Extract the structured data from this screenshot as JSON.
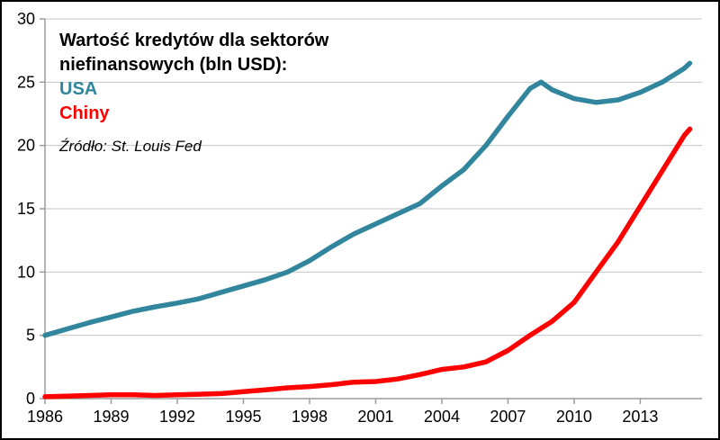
{
  "header": {
    "title_line1": "Wartość kredytów dla sektorów",
    "title_line2": "niefinansowych (bln USD):",
    "legend": [
      {
        "label": "USA"
      },
      {
        "label": "Chiny"
      }
    ],
    "source": "Źródło: St. Louis Fed"
  },
  "chart_data": {
    "type": "line",
    "title": "Wartość kredytów dla sektorów niefinansowych (bln USD):",
    "source": "Źródło: St. Louis Fed",
    "xlabel": "",
    "ylabel": "",
    "xlim": [
      1986,
      2015.8
    ],
    "ylim": [
      0,
      30
    ],
    "xticks": [
      1986,
      1989,
      1992,
      1995,
      1998,
      2001,
      2004,
      2007,
      2010,
      2013
    ],
    "yticks": [
      0,
      5,
      10,
      15,
      20,
      25,
      30
    ],
    "grid": "horizontal-only",
    "gridline_color": "#C6C6C6",
    "axis_color": "#9C9C9C",
    "legend_position": "top-left-inside",
    "series": [
      {
        "name": "USA",
        "color": "#31859C",
        "points": [
          [
            1986,
            5.0
          ],
          [
            1987,
            5.5
          ],
          [
            1988,
            6.0
          ],
          [
            1989,
            6.45
          ],
          [
            1990,
            6.9
          ],
          [
            1991,
            7.25
          ],
          [
            1992,
            7.55
          ],
          [
            1993,
            7.9
          ],
          [
            1994,
            8.4
          ],
          [
            1995,
            8.9
          ],
          [
            1996,
            9.4
          ],
          [
            1997,
            10.0
          ],
          [
            1998,
            10.9
          ],
          [
            1999,
            12.0
          ],
          [
            2000,
            13.0
          ],
          [
            2001,
            13.8
          ],
          [
            2002,
            14.6
          ],
          [
            2003,
            15.4
          ],
          [
            2004,
            16.8
          ],
          [
            2005,
            18.1
          ],
          [
            2006,
            20.0
          ],
          [
            2007,
            22.3
          ],
          [
            2008,
            24.5
          ],
          [
            2008.5,
            25.0
          ],
          [
            2009,
            24.4
          ],
          [
            2010,
            23.7
          ],
          [
            2011,
            23.4
          ],
          [
            2012,
            23.6
          ],
          [
            2013,
            24.2
          ],
          [
            2014,
            25.0
          ],
          [
            2015,
            26.1
          ],
          [
            2015.25,
            26.5
          ]
        ]
      },
      {
        "name": "Chiny",
        "color": "#FF0000",
        "points": [
          [
            1986,
            0.15
          ],
          [
            1987,
            0.2
          ],
          [
            1988,
            0.25
          ],
          [
            1989,
            0.3
          ],
          [
            1990,
            0.3
          ],
          [
            1991,
            0.25
          ],
          [
            1992,
            0.3
          ],
          [
            1993,
            0.35
          ],
          [
            1994,
            0.4
          ],
          [
            1995,
            0.55
          ],
          [
            1996,
            0.7
          ],
          [
            1997,
            0.85
          ],
          [
            1998,
            0.95
          ],
          [
            1999,
            1.1
          ],
          [
            2000,
            1.3
          ],
          [
            2001,
            1.35
          ],
          [
            2002,
            1.55
          ],
          [
            2003,
            1.9
          ],
          [
            2004,
            2.3
          ],
          [
            2005,
            2.5
          ],
          [
            2006,
            2.9
          ],
          [
            2007,
            3.8
          ],
          [
            2008,
            5.0
          ],
          [
            2009,
            6.1
          ],
          [
            2010,
            7.6
          ],
          [
            2011,
            10.0
          ],
          [
            2012,
            12.4
          ],
          [
            2013,
            15.2
          ],
          [
            2014,
            18.0
          ],
          [
            2015,
            20.8
          ],
          [
            2015.25,
            21.3
          ]
        ]
      }
    ]
  }
}
